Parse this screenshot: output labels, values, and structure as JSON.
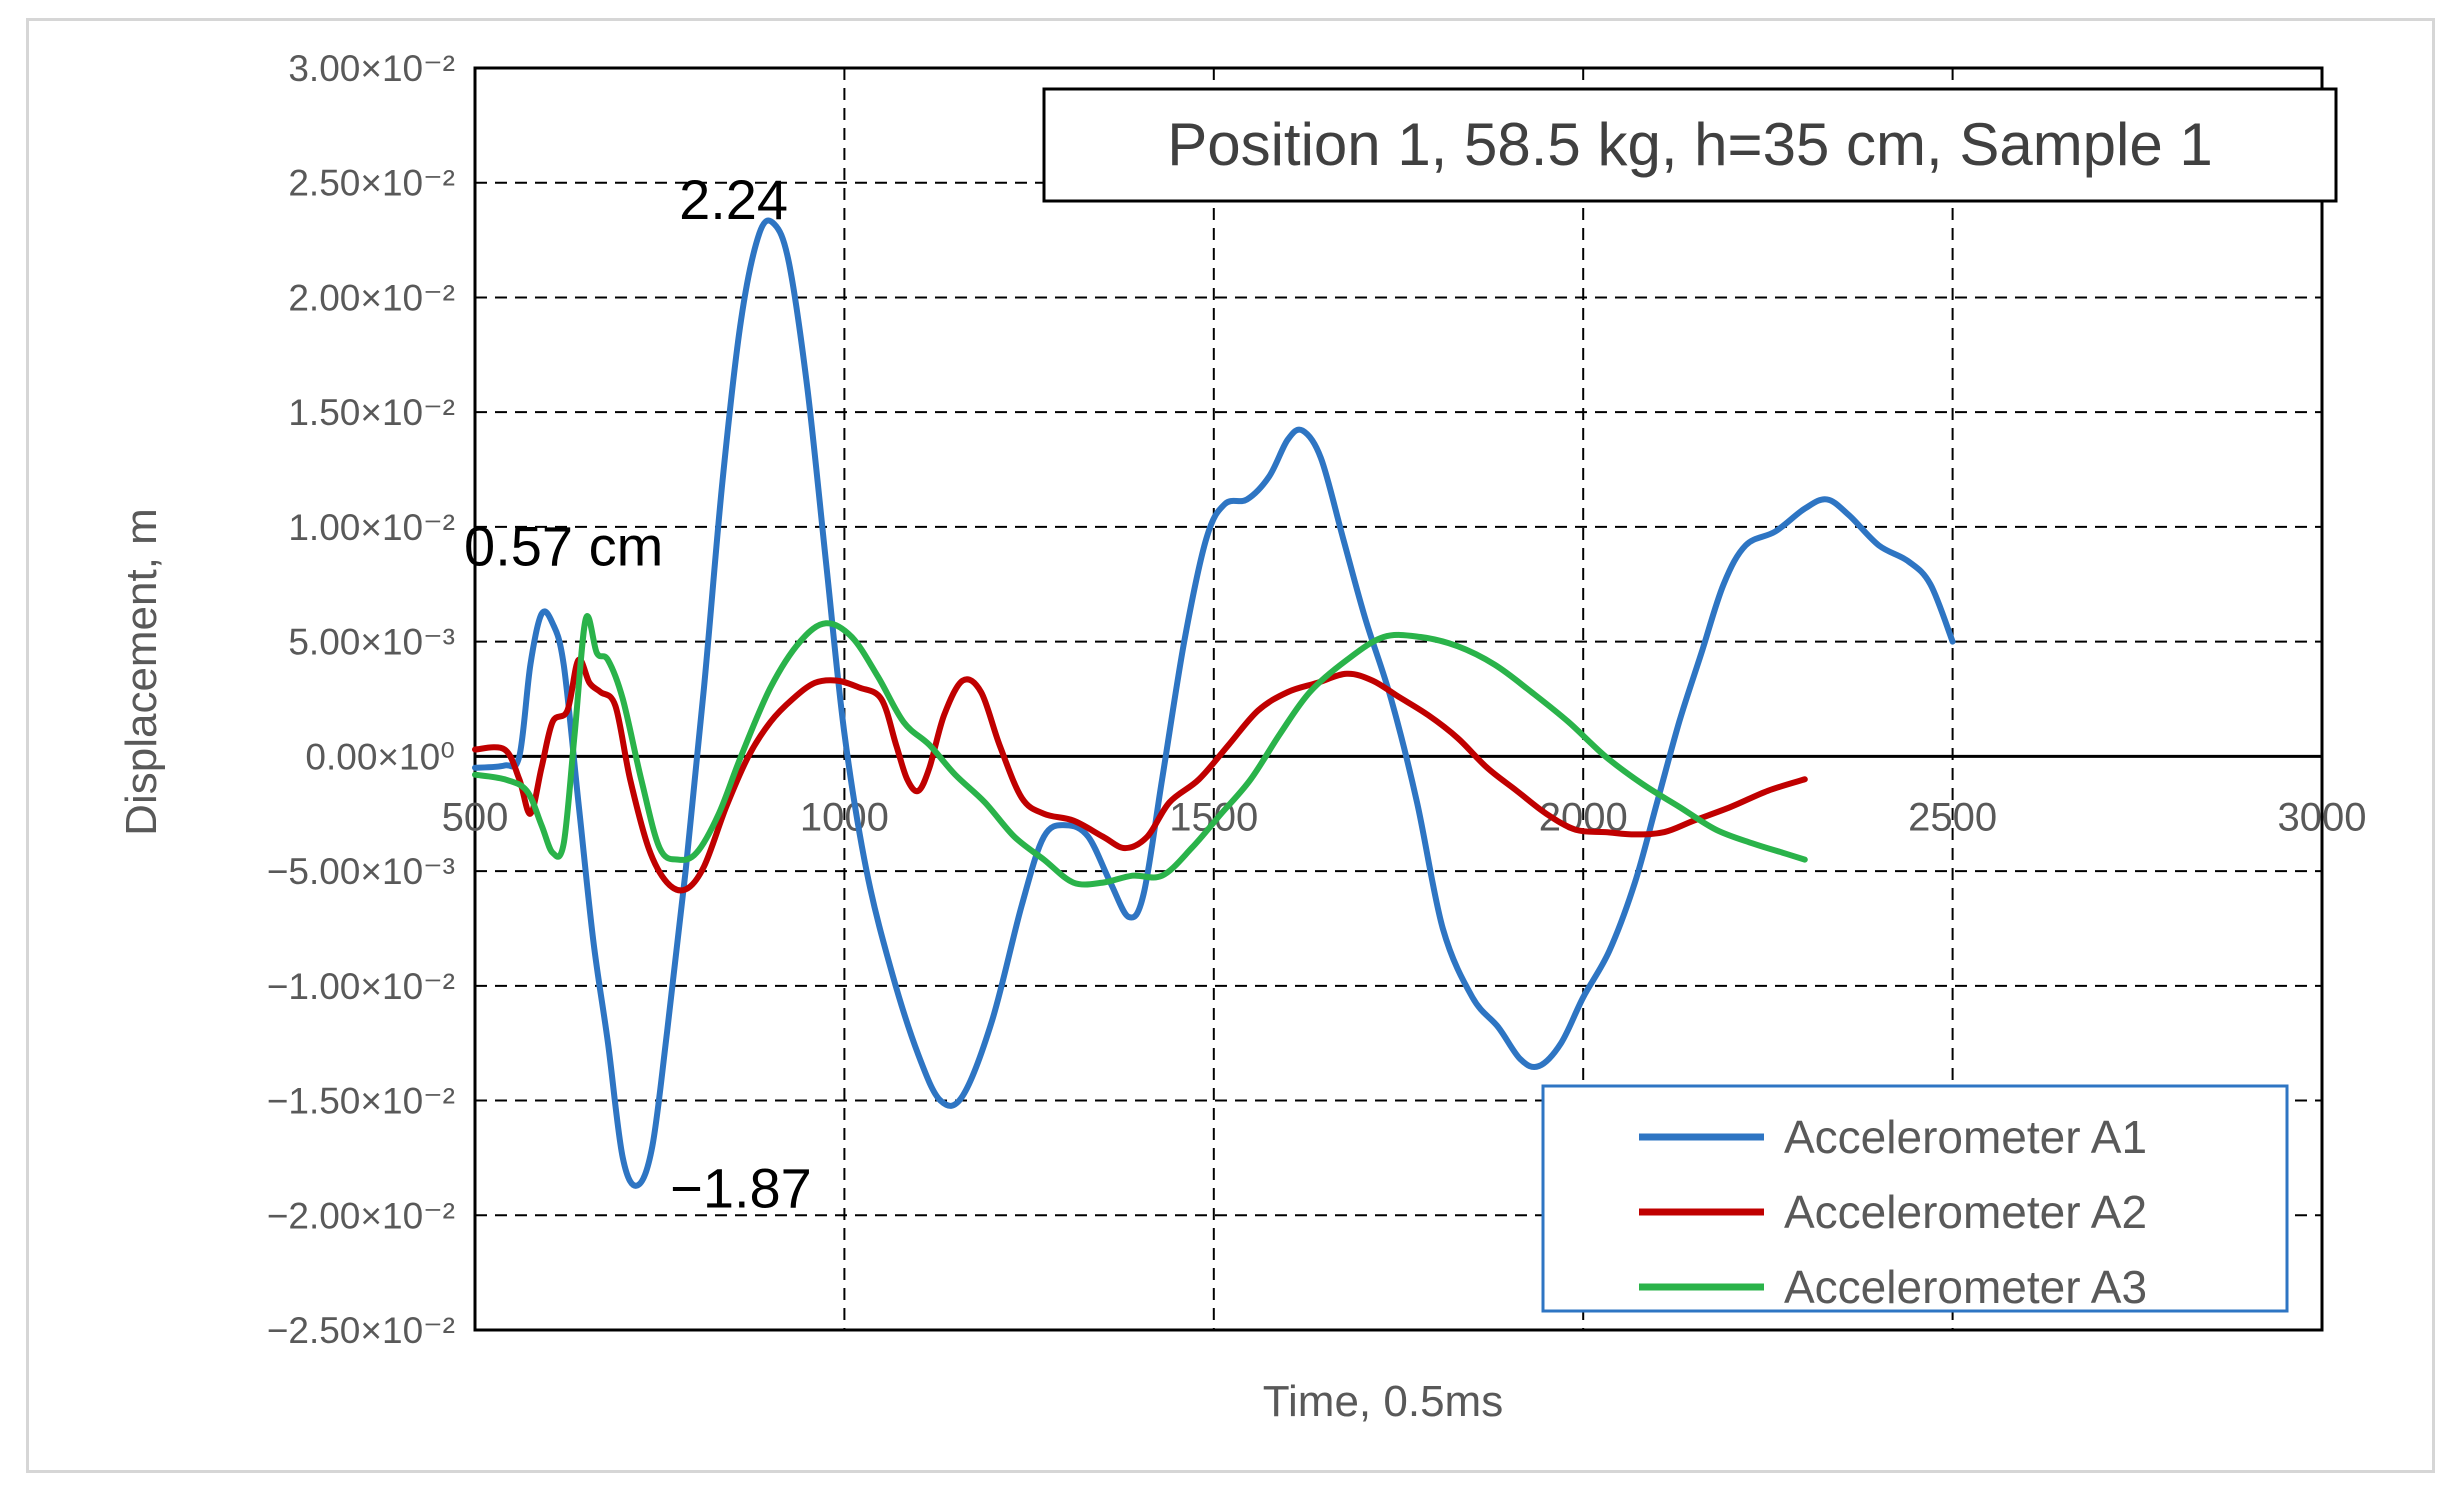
{
  "chart_data": {
    "type": "line",
    "title": "Position 1, 58.5 kg, h=35 cm, Sample 1",
    "xlabel": "Time, 0.5ms",
    "ylabel": "Displacement, m",
    "xlim": [
      500,
      3000
    ],
    "ylim": [
      -0.025,
      0.03
    ],
    "x_ticks": [
      500,
      1000,
      1500,
      2000,
      2500,
      3000
    ],
    "x_tick_labels": [
      "500",
      "1000",
      "1500",
      "2000",
      "2500",
      "3000"
    ],
    "y_ticks": [
      0.03,
      0.025,
      0.02,
      0.015,
      0.01,
      0.005,
      0,
      -0.005,
      -0.01,
      -0.015,
      -0.02,
      -0.025
    ],
    "y_tick_labels": [
      "3.00×10⁻²",
      "2.50×10⁻²",
      "2.00×10⁻²",
      "1.50×10⁻²",
      "1.00×10⁻²",
      "5.00×10⁻³",
      "0.00×10⁰",
      "−5.00×10⁻³",
      "−1.00×10⁻²",
      "−1.50×10⁻²",
      "−2.00×10⁻²",
      "−2.50×10⁻²"
    ],
    "grid": true,
    "legend_position": "bottom-right",
    "series": [
      {
        "name": "Accelerometer A1",
        "color": "#2e75c3",
        "points": [
          [
            500,
            -0.0005
          ],
          [
            540,
            -0.0004
          ],
          [
            560,
            0.0
          ],
          [
            575,
            0.004
          ],
          [
            590,
            0.0062
          ],
          [
            605,
            0.0058
          ],
          [
            620,
            0.004
          ],
          [
            640,
            -0.002
          ],
          [
            660,
            -0.008
          ],
          [
            680,
            -0.0125
          ],
          [
            700,
            -0.0175
          ],
          [
            720,
            -0.0187
          ],
          [
            740,
            -0.017
          ],
          [
            760,
            -0.012
          ],
          [
            785,
            -0.005
          ],
          [
            810,
            0.003
          ],
          [
            835,
            0.012
          ],
          [
            860,
            0.019
          ],
          [
            885,
            0.0228
          ],
          [
            905,
            0.0232
          ],
          [
            925,
            0.0215
          ],
          [
            950,
            0.016
          ],
          [
            975,
            0.0085
          ],
          [
            1000,
            0.001
          ],
          [
            1030,
            -0.005
          ],
          [
            1065,
            -0.0095
          ],
          [
            1100,
            -0.013
          ],
          [
            1130,
            -0.015
          ],
          [
            1160,
            -0.0148
          ],
          [
            1200,
            -0.0115
          ],
          [
            1240,
            -0.0065
          ],
          [
            1270,
            -0.0035
          ],
          [
            1300,
            -0.003
          ],
          [
            1330,
            -0.0035
          ],
          [
            1360,
            -0.0055
          ],
          [
            1385,
            -0.007
          ],
          [
            1405,
            -0.006
          ],
          [
            1430,
            -0.001
          ],
          [
            1460,
            0.005
          ],
          [
            1490,
            0.0095
          ],
          [
            1515,
            0.011
          ],
          [
            1545,
            0.0112
          ],
          [
            1575,
            0.0122
          ],
          [
            1600,
            0.0138
          ],
          [
            1620,
            0.0142
          ],
          [
            1645,
            0.013
          ],
          [
            1675,
            0.0095
          ],
          [
            1705,
            0.006
          ],
          [
            1740,
            0.0025
          ],
          [
            1775,
            -0.002
          ],
          [
            1810,
            -0.0075
          ],
          [
            1850,
            -0.0105
          ],
          [
            1885,
            -0.0118
          ],
          [
            1915,
            -0.0132
          ],
          [
            1940,
            -0.0135
          ],
          [
            1970,
            -0.0125
          ],
          [
            2000,
            -0.0105
          ],
          [
            2035,
            -0.0085
          ],
          [
            2070,
            -0.0055
          ],
          [
            2100,
            -0.002
          ],
          [
            2130,
            0.0015
          ],
          [
            2160,
            0.0045
          ],
          [
            2190,
            0.0075
          ],
          [
            2220,
            0.0092
          ],
          [
            2260,
            0.0098
          ],
          [
            2300,
            0.0108
          ],
          [
            2330,
            0.0112
          ],
          [
            2360,
            0.0105
          ],
          [
            2400,
            0.0092
          ],
          [
            2440,
            0.0085
          ],
          [
            2470,
            0.0075
          ],
          [
            2500,
            0.005
          ]
        ]
      },
      {
        "name": "Accelerometer A2",
        "color": "#c00000",
        "points": [
          [
            500,
            0.0003
          ],
          [
            540,
            0.0003
          ],
          [
            560,
            -0.001
          ],
          [
            575,
            -0.0025
          ],
          [
            590,
            -0.0005
          ],
          [
            605,
            0.0015
          ],
          [
            625,
            0.002
          ],
          [
            640,
            0.0042
          ],
          [
            655,
            0.0032
          ],
          [
            670,
            0.0028
          ],
          [
            690,
            0.0022
          ],
          [
            710,
            -0.001
          ],
          [
            735,
            -0.004
          ],
          [
            760,
            -0.0055
          ],
          [
            785,
            -0.0058
          ],
          [
            810,
            -0.0048
          ],
          [
            840,
            -0.0022
          ],
          [
            870,
            0.0
          ],
          [
            900,
            0.0015
          ],
          [
            930,
            0.0025
          ],
          [
            960,
            0.0032
          ],
          [
            990,
            0.0033
          ],
          [
            1020,
            0.003
          ],
          [
            1050,
            0.0025
          ],
          [
            1070,
            0.0005
          ],
          [
            1085,
            -0.001
          ],
          [
            1100,
            -0.0015
          ],
          [
            1115,
            -0.0005
          ],
          [
            1135,
            0.0018
          ],
          [
            1160,
            0.0033
          ],
          [
            1185,
            0.0028
          ],
          [
            1210,
            0.0005
          ],
          [
            1240,
            -0.0018
          ],
          [
            1270,
            -0.0025
          ],
          [
            1310,
            -0.0028
          ],
          [
            1350,
            -0.0035
          ],
          [
            1380,
            -0.004
          ],
          [
            1410,
            -0.0035
          ],
          [
            1440,
            -0.002
          ],
          [
            1480,
            -0.001
          ],
          [
            1520,
            0.0005
          ],
          [
            1560,
            0.002
          ],
          [
            1600,
            0.0028
          ],
          [
            1640,
            0.0032
          ],
          [
            1680,
            0.0036
          ],
          [
            1715,
            0.0033
          ],
          [
            1750,
            0.0026
          ],
          [
            1790,
            0.0018
          ],
          [
            1830,
            0.0008
          ],
          [
            1870,
            -0.0005
          ],
          [
            1910,
            -0.0015
          ],
          [
            1950,
            -0.0025
          ],
          [
            1990,
            -0.0032
          ],
          [
            2030,
            -0.0033
          ],
          [
            2070,
            -0.0034
          ],
          [
            2110,
            -0.0033
          ],
          [
            2150,
            -0.0028
          ],
          [
            2200,
            -0.0022
          ],
          [
            2250,
            -0.0015
          ],
          [
            2300,
            -0.001
          ]
        ]
      },
      {
        "name": "Accelerometer A3",
        "color": "#2ab34a",
        "points": [
          [
            500,
            -0.0008
          ],
          [
            540,
            -0.001
          ],
          [
            570,
            -0.0015
          ],
          [
            590,
            -0.003
          ],
          [
            605,
            -0.0042
          ],
          [
            620,
            -0.0038
          ],
          [
            635,
            0.001
          ],
          [
            650,
            0.006
          ],
          [
            665,
            0.0045
          ],
          [
            680,
            0.0042
          ],
          [
            700,
            0.0025
          ],
          [
            725,
            -0.001
          ],
          [
            750,
            -0.004
          ],
          [
            775,
            -0.0045
          ],
          [
            800,
            -0.0042
          ],
          [
            830,
            -0.0025
          ],
          [
            860,
            0.0
          ],
          [
            900,
            0.003
          ],
          [
            940,
            0.005
          ],
          [
            975,
            0.0058
          ],
          [
            1010,
            0.0052
          ],
          [
            1045,
            0.0035
          ],
          [
            1080,
            0.0015
          ],
          [
            1115,
            0.0005
          ],
          [
            1150,
            -0.0008
          ],
          [
            1190,
            -0.002
          ],
          [
            1230,
            -0.0035
          ],
          [
            1270,
            -0.0045
          ],
          [
            1310,
            -0.0055
          ],
          [
            1350,
            -0.0055
          ],
          [
            1390,
            -0.0052
          ],
          [
            1430,
            -0.0052
          ],
          [
            1470,
            -0.004
          ],
          [
            1510,
            -0.0025
          ],
          [
            1550,
            -0.001
          ],
          [
            1590,
            0.001
          ],
          [
            1630,
            0.0028
          ],
          [
            1680,
            0.0042
          ],
          [
            1730,
            0.0052
          ],
          [
            1780,
            0.0052
          ],
          [
            1830,
            0.0048
          ],
          [
            1880,
            0.004
          ],
          [
            1930,
            0.0028
          ],
          [
            1980,
            0.0015
          ],
          [
            2030,
            0.0
          ],
          [
            2080,
            -0.0012
          ],
          [
            2130,
            -0.0022
          ],
          [
            2180,
            -0.0032
          ],
          [
            2230,
            -0.0038
          ],
          [
            2270,
            -0.0042
          ],
          [
            2300,
            -0.0045
          ]
        ]
      }
    ],
    "annotations": [
      {
        "text": "0.57 cm",
        "x": 620,
        "y": 0.0092
      },
      {
        "text": "2.24",
        "x": 850,
        "y": 0.0243
      },
      {
        "text": "−1.87",
        "x": 860,
        "y": -0.0188
      }
    ]
  }
}
